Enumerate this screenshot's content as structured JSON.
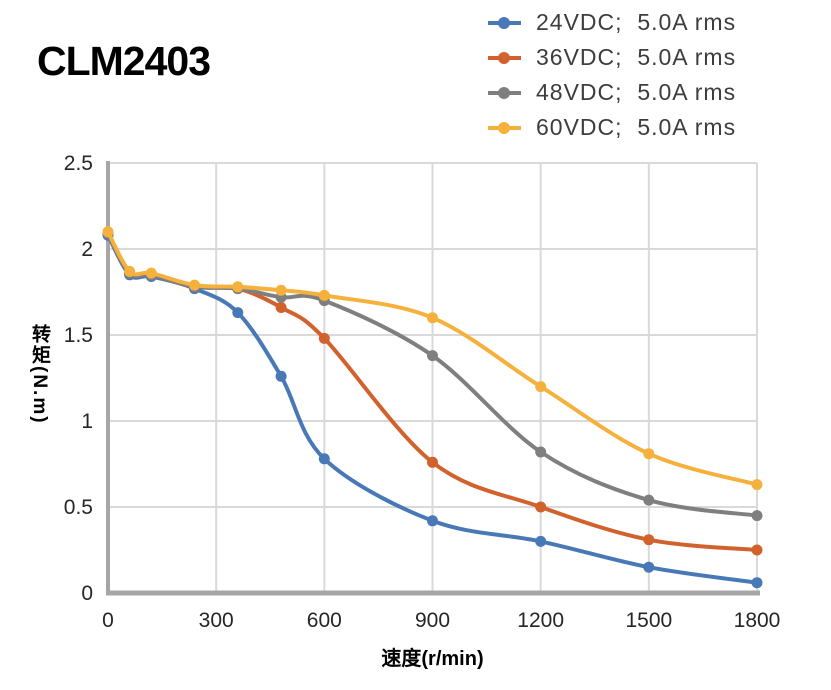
{
  "title": "CLM2403",
  "legend": {
    "items": [
      {
        "label": "24VDC;  5.0A rms"
      },
      {
        "label": "36VDC;  5.0A rms"
      },
      {
        "label": "48VDC;  5.0A rms"
      },
      {
        "label": "60VDC;  5.0A rms"
      }
    ]
  },
  "chart_data": {
    "type": "line",
    "title": "CLM2403",
    "xlabel": "速度(r/min)",
    "ylabel": "转矩(N.m)",
    "x": [
      0,
      60,
      120,
      240,
      360,
      480,
      600,
      900,
      1200,
      1500,
      1800
    ],
    "series": [
      {
        "name": "24VDC; 5.0A rms",
        "color": "#4879B6",
        "values": [
          2.08,
          1.85,
          1.84,
          1.77,
          1.63,
          1.26,
          0.78,
          0.42,
          0.3,
          0.15,
          0.06
        ]
      },
      {
        "name": "36VDC; 5.0A rms",
        "color": "#D2622D",
        "values": [
          2.09,
          1.86,
          1.85,
          1.78,
          1.77,
          1.66,
          1.48,
          0.76,
          0.5,
          0.31,
          0.25
        ]
      },
      {
        "name": "48VDC; 5.0A rms",
        "color": "#7F7F7F",
        "values": [
          2.09,
          1.86,
          1.85,
          1.78,
          1.77,
          1.72,
          1.7,
          1.38,
          0.82,
          0.54,
          0.45
        ]
      },
      {
        "name": "60VDC; 5.0A rms",
        "color": "#F6B13D",
        "values": [
          2.1,
          1.87,
          1.86,
          1.79,
          1.78,
          1.76,
          1.73,
          1.6,
          1.2,
          0.81,
          0.63
        ]
      }
    ],
    "xlim": [
      0,
      1800
    ],
    "ylim": [
      0,
      2.5
    ],
    "x_ticks": [
      0,
      300,
      600,
      900,
      1200,
      1500,
      1800
    ],
    "x_tick_labels": [
      "0",
      "300",
      "600",
      "900",
      "1200",
      "1500",
      "1800"
    ],
    "y_ticks": [
      0,
      0.5,
      1,
      1.5,
      2,
      2.5
    ],
    "y_tick_labels": [
      "0",
      "0.5",
      "1",
      "1.5",
      "2",
      "2.5"
    ],
    "grid": true,
    "legend_position": "top-right",
    "colors": {
      "grid": "#D9D9D9",
      "axis": "#A6A6A6",
      "tick_text": "#262626",
      "background": "#FFFFFF"
    }
  }
}
